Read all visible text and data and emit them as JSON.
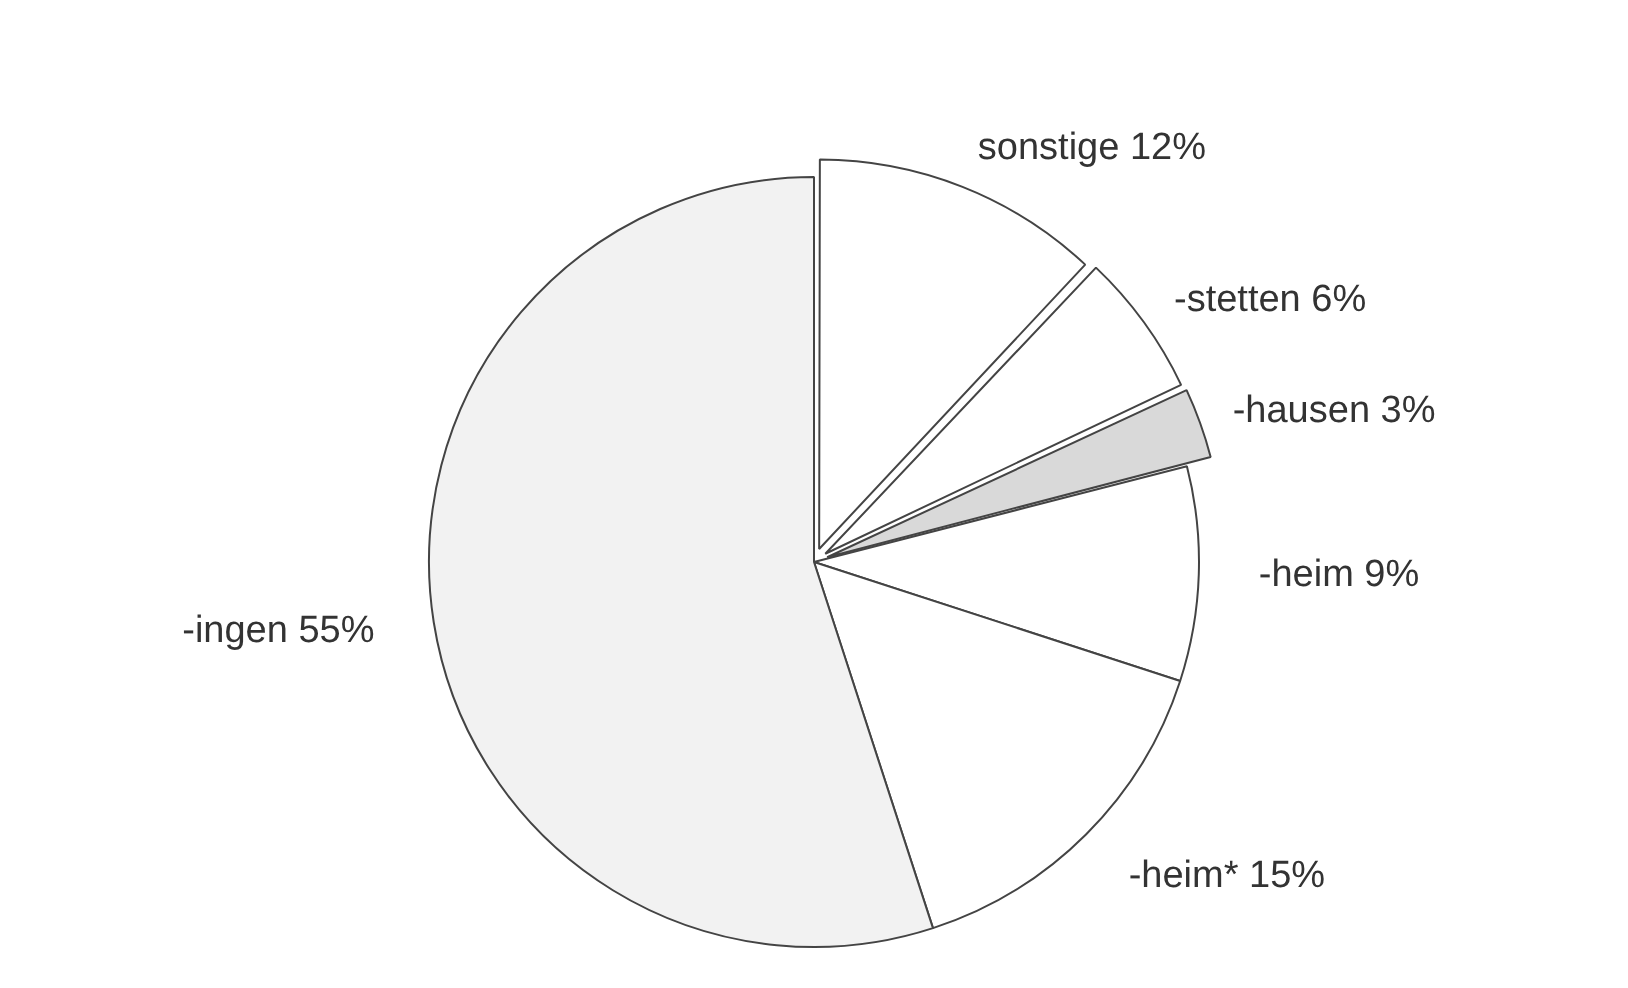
{
  "chart_data": {
    "type": "pie",
    "categories": [
      "sonstige",
      "-stetten",
      "-hausen",
      "-heim",
      "-heim*",
      "-ingen"
    ],
    "values": [
      12,
      6,
      3,
      9,
      15,
      55
    ],
    "colors": [
      "#ffffff",
      "#ffffff",
      "#d9d9d9",
      "#ffffff",
      "#ffffff",
      "#f2f2f2"
    ],
    "value_labels": [
      "12%",
      "6%",
      "3%",
      "9%",
      "15%",
      "55%"
    ],
    "legend": false
  }
}
